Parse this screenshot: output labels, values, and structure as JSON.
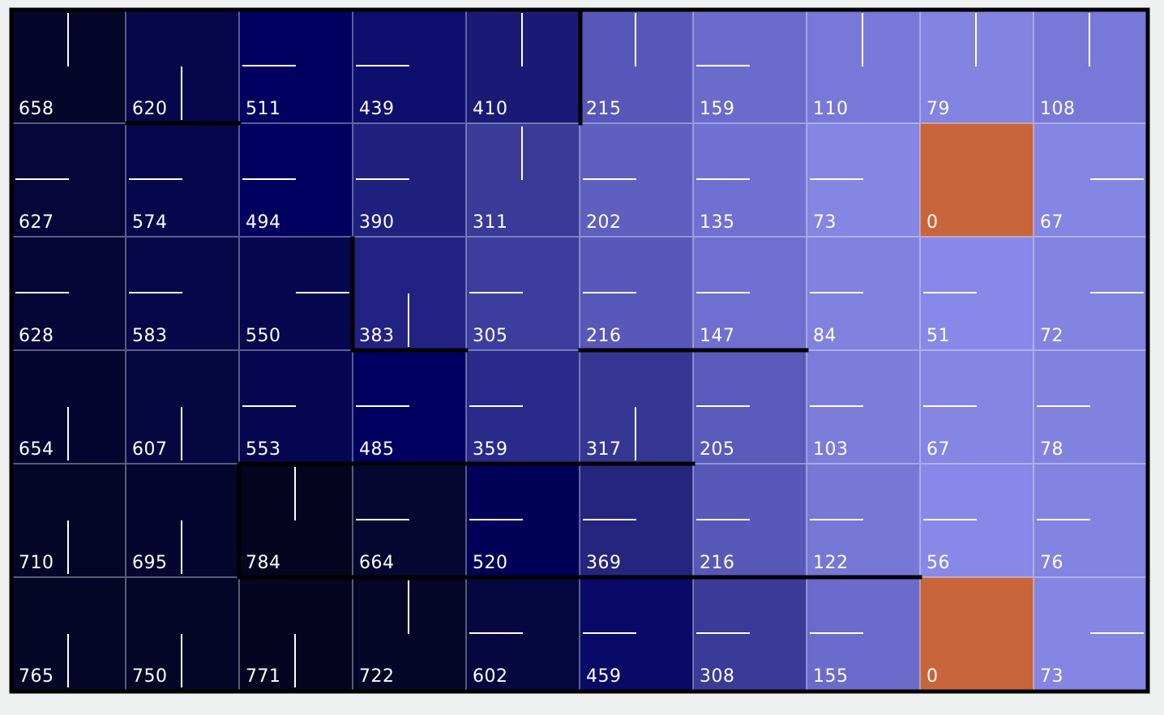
{
  "grid": {
    "rows": 6,
    "cols": 10,
    "values": [
      [
        "658",
        "620",
        "511",
        "439",
        "410",
        "215",
        "159",
        "110",
        "79",
        "108"
      ],
      [
        "627",
        "574",
        "494",
        "390",
        "311",
        "202",
        "135",
        "73",
        "0",
        "67"
      ],
      [
        "628",
        "583",
        "550",
        "383",
        "305",
        "216",
        "147",
        "84",
        "51",
        "72"
      ],
      [
        "654",
        "607",
        "553",
        "485",
        "359",
        "317",
        "205",
        "103",
        "67",
        "78"
      ],
      [
        "710",
        "695",
        "784",
        "664",
        "520",
        "369",
        "216",
        "122",
        "56",
        "76"
      ],
      [
        "765",
        "750",
        "771",
        "722",
        "602",
        "459",
        "308",
        "155",
        "0",
        "73"
      ]
    ],
    "arrows": [
      [
        "up",
        "down",
        "left",
        "left",
        "up",
        "up",
        "left",
        "up",
        "up",
        "up"
      ],
      [
        "left",
        "left",
        "left",
        "left",
        "up",
        "left",
        "left",
        "left",
        "none",
        "right"
      ],
      [
        "left",
        "left",
        "right",
        "down",
        "left",
        "left",
        "left",
        "left",
        "left",
        "right"
      ],
      [
        "down",
        "down",
        "left",
        "left",
        "left",
        "down",
        "left",
        "left",
        "left",
        "left"
      ],
      [
        "down",
        "down",
        "up",
        "left",
        "left",
        "left",
        "left",
        "left",
        "left",
        "left"
      ],
      [
        "down",
        "down",
        "down",
        "up",
        "left",
        "left",
        "left",
        "left",
        "none",
        "right"
      ]
    ],
    "colors": [
      [
        "#06062a",
        "#06064a",
        "#000060",
        "#0e0e6e",
        "#1a1a76",
        "#5757b9",
        "#6b6bcc",
        "#7878d9",
        "#8383e1",
        "#7878d9"
      ],
      [
        "#06063a",
        "#06064c",
        "#000060",
        "#20207e",
        "#3a3a99",
        "#5f5fbf",
        "#7070d2",
        "#8585e3",
        "#c8653a",
        "#8585e3"
      ],
      [
        "#050538",
        "#060648",
        "#070750",
        "#222282",
        "#3d3d9e",
        "#5858ba",
        "#6f6fd0",
        "#8181e0",
        "#8888e8",
        "#8383e2"
      ],
      [
        "#050530",
        "#060640",
        "#060650",
        "#000060",
        "#2a2a8a",
        "#363693",
        "#5a5abb",
        "#7c7cdb",
        "#8585e3",
        "#8282e0"
      ],
      [
        "#050528",
        "#050530",
        "#050520",
        "#060630",
        "#000058",
        "#25257f",
        "#5858b9",
        "#7777d6",
        "#8888e8",
        "#8383e2"
      ],
      [
        "#050526",
        "#050528",
        "#050522",
        "#050528",
        "#060640",
        "#090968",
        "#3a3a98",
        "#6b6bcc",
        "#c8653a",
        "#8585e3"
      ]
    ]
  }
}
